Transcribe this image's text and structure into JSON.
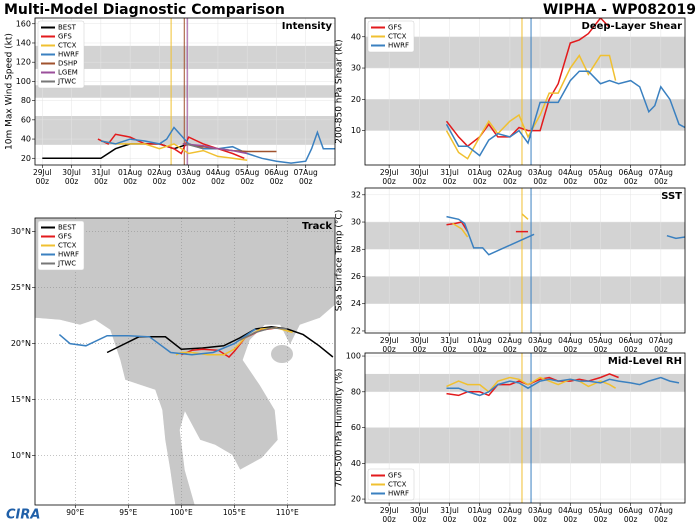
{
  "header": {
    "title": "Multi-Model Diagnostic Comparison",
    "subtitle": "WIPHA - WP082019",
    "logo": "CIRA"
  },
  "chart_data": [
    {
      "type": "line",
      "title": "Intensity",
      "ylabel": "10m Max Wind Speed (kt)",
      "legend": "upper left",
      "grid": true,
      "xlim": [
        -0.25,
        10
      ],
      "ylim": [
        13,
        166
      ],
      "yticks": [
        20,
        40,
        60,
        80,
        100,
        120,
        140,
        160
      ],
      "xticks": [
        {
          "value": 0,
          "label": "29Jul\n00z"
        },
        {
          "value": 1,
          "label": "30Jul\n00z"
        },
        {
          "value": 2,
          "label": "31Jul\n00z"
        },
        {
          "value": 3,
          "label": "01Aug\n00z"
        },
        {
          "value": 4,
          "label": "02Aug\n00z"
        },
        {
          "value": 5,
          "label": "03Aug\n00z"
        },
        {
          "value": 6,
          "label": "04Aug\n00z"
        },
        {
          "value": 7,
          "label": "05Aug\n00z"
        },
        {
          "value": 8,
          "label": "06Aug\n00z"
        },
        {
          "value": 9,
          "label": "07Aug\n00z"
        }
      ],
      "bands": [
        [
          34,
          64
        ],
        [
          83,
          96
        ],
        [
          113,
          137
        ]
      ],
      "vlines": [
        {
          "x": 4.4,
          "color": "#f0c030"
        },
        {
          "x": 4.85,
          "color": "#a0522d"
        },
        {
          "x": 4.95,
          "color": "#9b4f9b"
        }
      ],
      "series": [
        {
          "name": "BEST",
          "color": "#000000",
          "x": [
            0,
            1,
            2,
            2.5,
            3,
            3.5,
            4,
            4.5,
            5,
            5.5
          ],
          "values": [
            20,
            20,
            20,
            30,
            35,
            35,
            35,
            30,
            35,
            30
          ]
        },
        {
          "name": "GFS",
          "color": "#e31a1c",
          "x": [
            1.9,
            2.25,
            2.5,
            3,
            3.5,
            4,
            4.5,
            4.75,
            5,
            5.5,
            6,
            6.5,
            6.9
          ],
          "values": [
            40,
            35,
            45,
            42,
            35,
            35,
            30,
            25,
            42,
            35,
            30,
            25,
            20
          ]
        },
        {
          "name": "CTCX",
          "color": "#f0c030",
          "x": [
            2,
            2.5,
            3,
            3.5,
            4,
            4.5,
            5,
            5.5,
            6,
            6.5,
            7
          ],
          "values": [
            38,
            35,
            35,
            35,
            30,
            35,
            25,
            28,
            22,
            20,
            18
          ]
        },
        {
          "name": "HWRF",
          "color": "#3a80c0",
          "x": [
            2,
            2.5,
            3,
            3.5,
            4,
            4.25,
            4.5,
            5,
            5.5,
            6,
            6.5,
            7,
            7.5,
            8,
            8.5,
            9,
            9.2,
            9.4,
            9.6,
            10
          ],
          "values": [
            38,
            35,
            40,
            38,
            35,
            40,
            52,
            35,
            30,
            30,
            32,
            25,
            20,
            17,
            15,
            17,
            30,
            47,
            30,
            30
          ]
        },
        {
          "name": "DSHP",
          "color": "#a0522d",
          "x": [
            4.8,
            5.5,
            6,
            6.5,
            7,
            7.5,
            8
          ],
          "values": [
            35,
            32,
            30,
            28,
            27,
            27,
            27
          ]
        },
        {
          "name": "LGEM",
          "color": "#9b4f9b",
          "x": [
            4.8,
            5.5,
            6,
            6.5,
            7
          ],
          "values": [
            35,
            33,
            30,
            28,
            25
          ]
        },
        {
          "name": "JTWC",
          "color": "#777777",
          "x": [
            4.9,
            5.5
          ],
          "values": [
            35,
            30
          ]
        }
      ]
    },
    {
      "type": "line",
      "title": "Deep-Layer Shear",
      "ylabel": "200-850 hPa Shear (kt)",
      "legend": "upper left",
      "grid": true,
      "xlim": [
        -0.8,
        9.8
      ],
      "ylim": [
        -1,
        46
      ],
      "yticks": [
        10,
        20,
        30,
        40
      ],
      "xticks": [
        {
          "value": 0,
          "label": "29Jul\n00z"
        },
        {
          "value": 1,
          "label": "30Jul\n00z"
        },
        {
          "value": 2,
          "label": "31Jul\n00z"
        },
        {
          "value": 3,
          "label": "01Aug\n00z"
        },
        {
          "value": 4,
          "label": "02Aug\n00z"
        },
        {
          "value": 5,
          "label": "03Aug\n00z"
        },
        {
          "value": 6,
          "label": "04Aug\n00z"
        },
        {
          "value": 7,
          "label": "05Aug\n00z"
        },
        {
          "value": 8,
          "label": "06Aug\n00z"
        },
        {
          "value": 9,
          "label": "07Aug\n00z"
        }
      ],
      "bands": [
        [
          10,
          20
        ],
        [
          30,
          40
        ]
      ],
      "vlines": [
        {
          "x": 4.4,
          "color": "#f0c030"
        },
        {
          "x": 4.7,
          "color": "#3a80c0"
        }
      ],
      "series": [
        {
          "name": "GFS",
          "color": "#e31a1c",
          "x": [
            1.9,
            2.3,
            2.6,
            3,
            3.3,
            3.6,
            4,
            4.3,
            4.6,
            5,
            5.3,
            5.6,
            6,
            6.3,
            6.6,
            7,
            7.3
          ],
          "values": [
            13,
            8,
            5,
            8,
            12,
            8,
            8,
            11,
            10,
            10,
            20,
            25,
            38,
            39,
            41,
            46,
            43
          ]
        },
        {
          "name": "CTCX",
          "color": "#f0c030",
          "x": [
            1.9,
            2.3,
            2.6,
            3,
            3.3,
            3.6,
            4,
            4.3,
            4.6,
            5,
            5.3,
            5.6,
            6,
            6.3,
            6.6,
            7,
            7.3,
            7.5
          ],
          "values": [
            10,
            3,
            1,
            8,
            13,
            9,
            13,
            15,
            8,
            15,
            22,
            22,
            30,
            34,
            28,
            34,
            34,
            26
          ]
        },
        {
          "name": "HWRF",
          "color": "#3a80c0",
          "x": [
            1.9,
            2.3,
            2.6,
            3,
            3.3,
            3.6,
            4,
            4.3,
            4.6,
            5,
            5.3,
            5.6,
            6,
            6.3,
            6.6,
            7,
            7.3,
            7.6,
            8,
            8.3,
            8.6,
            8.8,
            9,
            9.3,
            9.6,
            9.8
          ],
          "values": [
            12,
            5,
            5,
            2,
            7,
            9,
            8,
            10,
            6,
            19,
            19,
            19,
            26,
            29,
            29,
            25,
            26,
            25,
            26,
            24,
            16,
            18,
            24,
            20,
            12,
            11
          ]
        }
      ]
    },
    {
      "type": "line",
      "title": "SST",
      "ylabel": "Sea Surface Temp (°C)",
      "grid": true,
      "xlim": [
        -0.8,
        9.8
      ],
      "ylim": [
        21.85,
        32.5
      ],
      "yticks": [
        22,
        24,
        26,
        28,
        30,
        32
      ],
      "xticks": [
        {
          "value": 0,
          "label": "29Jul\n00z"
        },
        {
          "value": 1,
          "label": "30Jul\n00z"
        },
        {
          "value": 2,
          "label": "31Jul\n00z"
        },
        {
          "value": 3,
          "label": "01Aug\n00z"
        },
        {
          "value": 4,
          "label": "02Aug\n00z"
        },
        {
          "value": 5,
          "label": "03Aug\n00z"
        },
        {
          "value": 6,
          "label": "04Aug\n00z"
        },
        {
          "value": 7,
          "label": "05Aug\n00z"
        },
        {
          "value": 8,
          "label": "06Aug\n00z"
        },
        {
          "value": 9,
          "label": "07Aug\n00z"
        }
      ],
      "bands": [
        [
          24,
          26
        ],
        [
          28,
          30
        ]
      ],
      "vlines": [
        {
          "x": 4.4,
          "color": "#f0c030"
        },
        {
          "x": 4.7,
          "color": "#3a80c0"
        }
      ],
      "series": [
        {
          "color": "#e31a1c",
          "x": [
            1.9,
            2.2,
            2.4,
            2.6,
            3.9,
            4.2,
            4.6
          ],
          "values": [
            29.8,
            29.9,
            30,
            29.3,
            null,
            29.3,
            29.3
          ]
        },
        {
          "color": "#f0c030",
          "x": [
            2.1,
            2.4,
            2.6,
            3.9,
            4.4,
            4.6
          ],
          "values": [
            29.9,
            29.5,
            28.9,
            null,
            30.6,
            30.2
          ]
        },
        {
          "color": "#3a80c0",
          "x": [
            1.9,
            2.3,
            2.5,
            2.8,
            3.1,
            3.3,
            4.8,
            8.7,
            9.2,
            9.5,
            9.8
          ],
          "values": [
            30.4,
            30.2,
            29.9,
            28.1,
            28.1,
            27.6,
            29.1,
            null,
            29,
            28.8,
            28.9
          ]
        }
      ]
    },
    {
      "type": "line",
      "title": "Mid-Level RH",
      "ylabel": "700-500 hPa Humidity (%)",
      "legend": "lower left",
      "grid": true,
      "xlim": [
        -0.8,
        9.8
      ],
      "ylim": [
        17.8,
        101.7
      ],
      "yticks": [
        20,
        40,
        60,
        80,
        100
      ],
      "xticks": [
        {
          "value": 0,
          "label": "29Jul\n00z"
        },
        {
          "value": 1,
          "label": "30Jul\n00z"
        },
        {
          "value": 2,
          "label": "31Jul\n00z"
        },
        {
          "value": 3,
          "label": "01Aug\n00z"
        },
        {
          "value": 4,
          "label": "02Aug\n00z"
        },
        {
          "value": 5,
          "label": "03Aug\n00z"
        },
        {
          "value": 6,
          "label": "04Aug\n00z"
        },
        {
          "value": 7,
          "label": "05Aug\n00z"
        },
        {
          "value": 8,
          "label": "06Aug\n00z"
        },
        {
          "value": 9,
          "label": "07Aug\n00z"
        }
      ],
      "bands": [
        [
          40,
          60
        ],
        [
          80,
          90
        ]
      ],
      "vlines": [
        {
          "x": 4.4,
          "color": "#f0c030"
        },
        {
          "x": 4.7,
          "color": "#3a80c0"
        }
      ],
      "series": [
        {
          "name": "GFS",
          "color": "#e31a1c",
          "x": [
            1.9,
            2.3,
            2.6,
            3,
            3.3,
            3.6,
            4,
            4.3,
            4.6,
            5,
            5.3,
            5.6,
            6,
            6.3,
            6.6,
            7,
            7.3,
            7.6
          ],
          "values": [
            79,
            78,
            80,
            80,
            78,
            84,
            84,
            86,
            84,
            87,
            88,
            86,
            86,
            87,
            86,
            88,
            90,
            88
          ]
        },
        {
          "name": "CTCX",
          "color": "#f0c030",
          "x": [
            1.9,
            2.3,
            2.6,
            3,
            3.3,
            3.6,
            4,
            4.3,
            4.6,
            5,
            5.3,
            5.6,
            6,
            6.3,
            6.6,
            7,
            7.3,
            7.5
          ],
          "values": [
            83,
            86,
            84,
            84,
            80,
            86,
            88,
            87,
            84,
            88,
            86,
            84,
            87,
            86,
            83,
            86,
            84,
            82
          ]
        },
        {
          "name": "HWRF",
          "color": "#3a80c0",
          "x": [
            1.9,
            2.3,
            2.6,
            3,
            3.3,
            3.6,
            4,
            4.3,
            4.6,
            5,
            5.3,
            5.6,
            6,
            6.3,
            6.6,
            7,
            7.3,
            7.6,
            8,
            8.3,
            8.6,
            9,
            9.3,
            9.6
          ],
          "values": [
            82,
            82,
            80,
            78,
            80,
            84,
            86,
            85,
            82,
            86,
            87,
            86,
            87,
            86,
            86,
            85,
            87,
            86,
            85,
            84,
            86,
            88,
            86,
            85
          ]
        }
      ]
    },
    {
      "type": "track",
      "title": "Track",
      "legend": "upper left",
      "grid": true,
      "xlim": [
        86.2,
        114.5
      ],
      "ylim": [
        5.6,
        31.2
      ],
      "xticks": [
        {
          "value": 90,
          "label": "90°E"
        },
        {
          "value": 95,
          "label": "95°E"
        },
        {
          "value": 100,
          "label": "100°E"
        },
        {
          "value": 105,
          "label": "105°E"
        },
        {
          "value": 110,
          "label": "110°E"
        }
      ],
      "yticks": [
        {
          "value": 10,
          "label": "10°N"
        },
        {
          "value": 15,
          "label": "15°N"
        },
        {
          "value": 20,
          "label": "20°N"
        },
        {
          "value": 25,
          "label": "25°N"
        },
        {
          "value": 30,
          "label": "30°N"
        }
      ],
      "series": [
        {
          "name": "BEST",
          "color": "#000000",
          "x": [
            114.3,
            113,
            111.5,
            110,
            108.5,
            107,
            105.5,
            104,
            102,
            100,
            98.5,
            96,
            93
          ],
          "values": [
            18.8,
            19.8,
            20.8,
            21.3,
            21.5,
            21.3,
            20.5,
            19.8,
            19.6,
            19.5,
            20.6,
            20.6,
            19.2
          ]
        },
        {
          "name": "GFS",
          "color": "#e31a1c",
          "x": [
            109,
            107.5,
            106,
            105,
            104.5,
            103.5,
            102,
            101,
            100
          ],
          "values": [
            21.4,
            21.2,
            20.5,
            19.3,
            18.8,
            19.4,
            19.5,
            19.4,
            19
          ]
        },
        {
          "name": "CTCX",
          "color": "#f0c030",
          "x": [
            110.5,
            109,
            107.5,
            106,
            105,
            104,
            102.5,
            101,
            100,
            99.5
          ],
          "values": [
            21,
            21.4,
            21.3,
            20.5,
            19.5,
            19,
            19,
            19.2,
            19.2,
            19
          ]
        },
        {
          "name": "HWRF",
          "color": "#3a80c0",
          "x": [
            107,
            105,
            103,
            101,
            99,
            97,
            95,
            93,
            91,
            89.5,
            88.5
          ],
          "values": [
            21.3,
            20,
            19.2,
            19,
            19.2,
            20.6,
            20.7,
            20.7,
            19.8,
            20,
            20.8
          ]
        },
        {
          "name": "JTWC",
          "color": "#777777",
          "x": [
            110,
            108.5,
            107,
            105.5
          ],
          "values": [
            21.3,
            21.4,
            21,
            20.3
          ]
        }
      ]
    }
  ]
}
